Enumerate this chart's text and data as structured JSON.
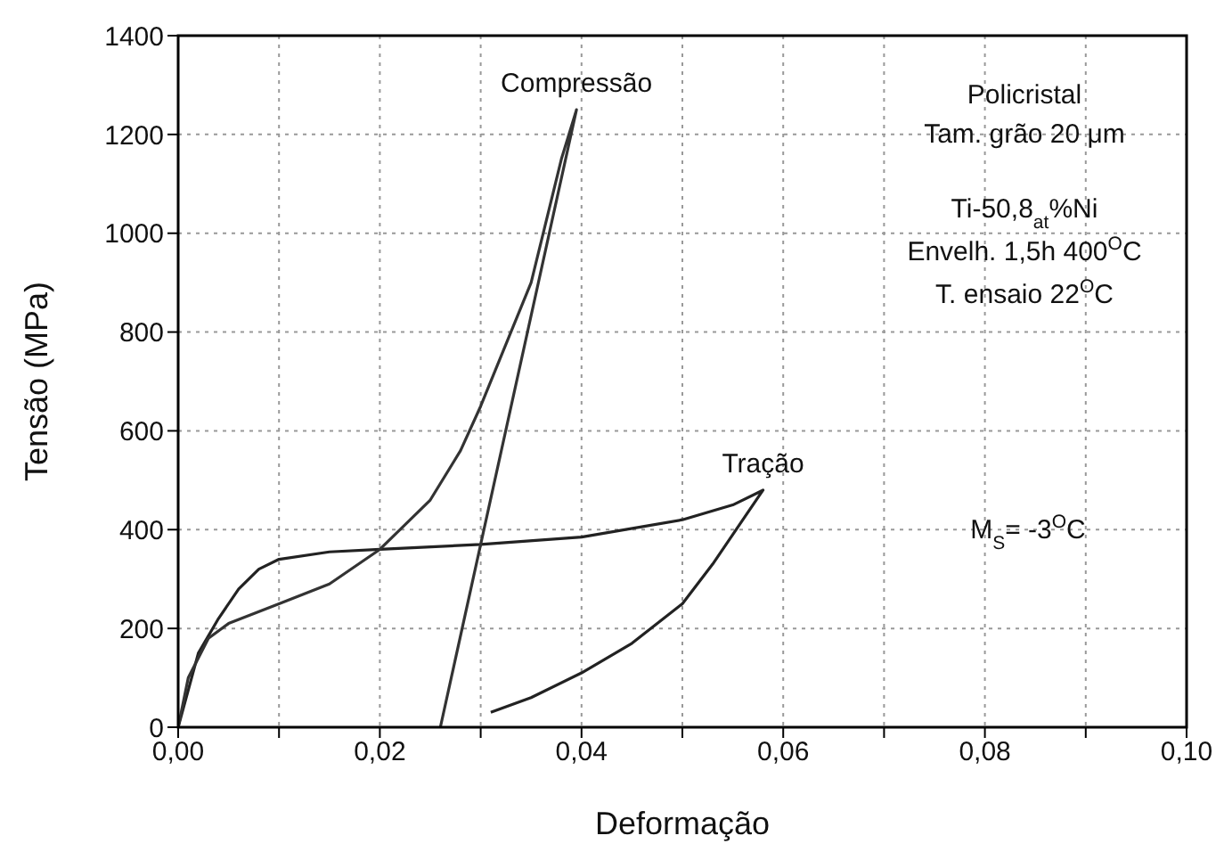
{
  "chart_data": {
    "type": "line",
    "xlabel": "Deformação",
    "ylabel": "Tensão (MPa)",
    "xlim": [
      0,
      0.1
    ],
    "ylim": [
      0,
      1400
    ],
    "xticks": [
      {
        "value": 0,
        "label": "0,00"
      },
      {
        "value": 0.01,
        "label": null
      },
      {
        "value": 0.02,
        "label": "0,02"
      },
      {
        "value": 0.03,
        "label": null
      },
      {
        "value": 0.04,
        "label": "0,04"
      },
      {
        "value": 0.05,
        "label": null
      },
      {
        "value": 0.06,
        "label": "0,06"
      },
      {
        "value": 0.07,
        "label": null
      },
      {
        "value": 0.08,
        "label": "0,08"
      },
      {
        "value": 0.09,
        "label": null
      },
      {
        "value": 0.1,
        "label": "0,10"
      }
    ],
    "yticks": [
      0,
      200,
      400,
      600,
      800,
      1000,
      1200,
      1400
    ],
    "grid": true,
    "marker": "none",
    "line_style": "solid",
    "series": [
      {
        "color": "#222222",
        "x": [
          0,
          0.002,
          0.004,
          0.006,
          0.008,
          0.01,
          0.015,
          0.02,
          0.03,
          0.04,
          0.05,
          0.055,
          0.058,
          0.056,
          0.053,
          0.05,
          0.045,
          0.04,
          0.035,
          0.031
        ],
        "values": [
          0,
          150,
          220,
          280,
          320,
          340,
          355,
          360,
          370,
          385,
          420,
          450,
          480,
          420,
          330,
          250,
          170,
          110,
          60,
          30
        ]
      },
      {
        "color": "#333333",
        "x": [
          0,
          0.001,
          0.003,
          0.005,
          0.01,
          0.015,
          0.02,
          0.025,
          0.028,
          0.03,
          0.035,
          0.038,
          0.0395,
          0.026
        ],
        "values": [
          0,
          100,
          180,
          210,
          250,
          290,
          360,
          460,
          560,
          650,
          900,
          1150,
          1250,
          0
        ]
      }
    ],
    "annotations": [
      {
        "text": "Compressão",
        "x": 0.0395,
        "y": 1250
      },
      {
        "text": "Tração",
        "x": 0.058,
        "y": 480
      },
      "Policristal",
      "Tam. grão 20 μm",
      "Ti-50,8$_{at}$%Ni",
      "Envelh. 1,5h  400$^{O}$C",
      "T. ensaio 22$^{O}$C",
      "M$_{S}$= -3$^{O}$C"
    ]
  }
}
